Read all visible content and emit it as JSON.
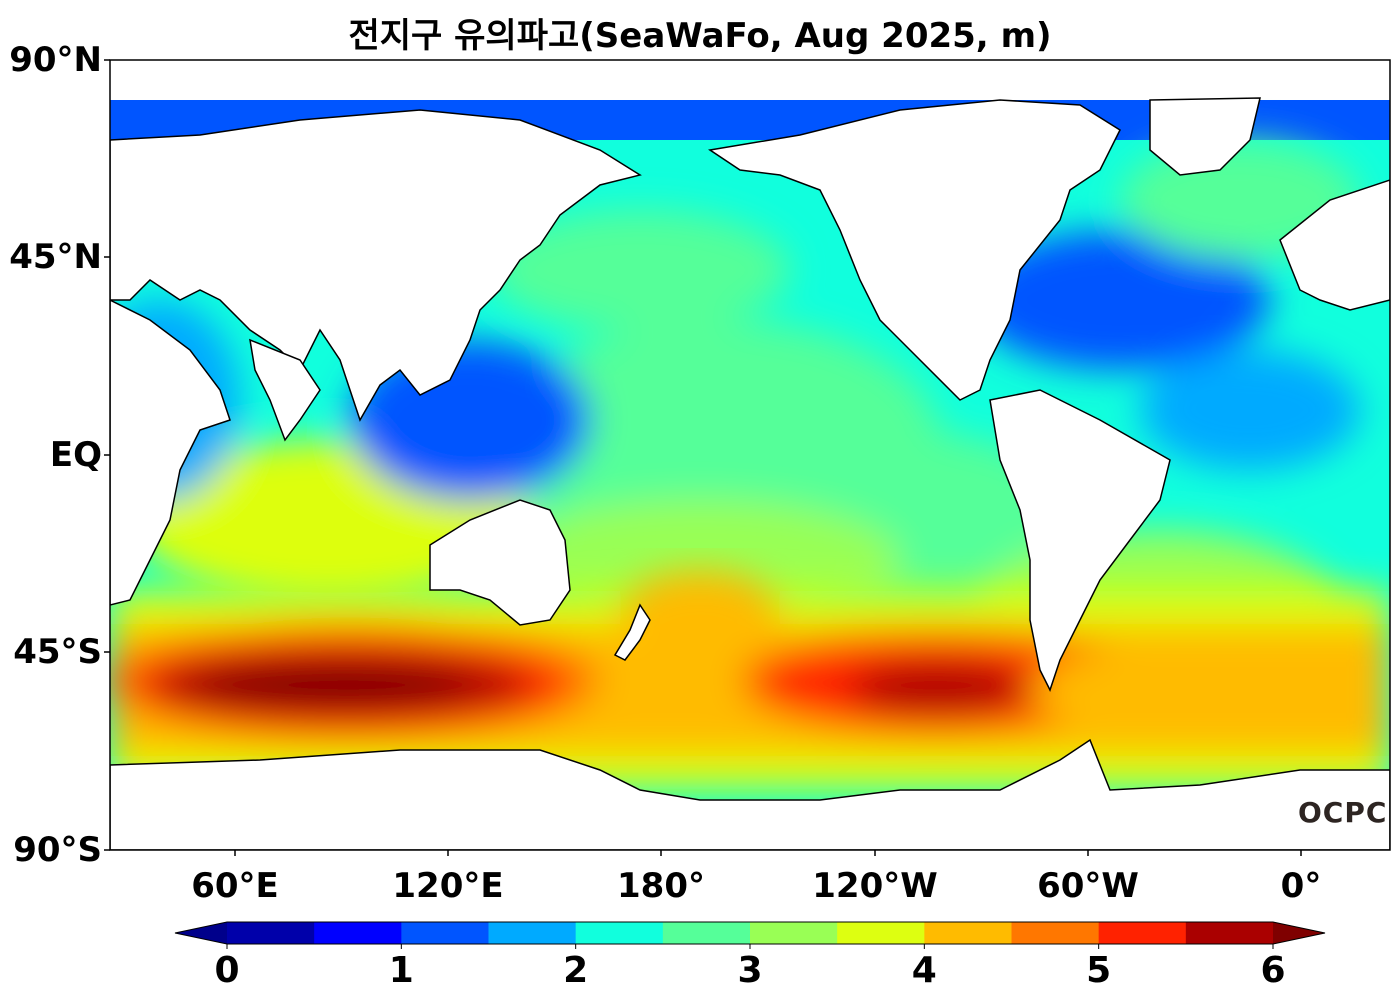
{
  "title": "전지구 유의파고(SeaWaFo, Aug 2025, m)",
  "watermark": "OCPC",
  "y_ticks": [
    "90°N",
    "45°N",
    "EQ",
    "45°S",
    "90°S"
  ],
  "x_ticks": [
    "60°E",
    "120°E",
    "180°",
    "120°W",
    "60°W",
    "0°"
  ],
  "colorbar": {
    "ticks": [
      "0",
      "1",
      "2",
      "3",
      "4",
      "5",
      "6"
    ],
    "min": 0,
    "max": 6,
    "step": 0.5,
    "colors": [
      "#0000aa",
      "#0000ff",
      "#0055ff",
      "#00aaff",
      "#11ffdd",
      "#55ff99",
      "#99ff55",
      "#ddff11",
      "#ffbb00",
      "#ff7700",
      "#ff2200",
      "#aa0000"
    ],
    "under_color": "#00008b",
    "over_color": "#7f0000"
  }
}
